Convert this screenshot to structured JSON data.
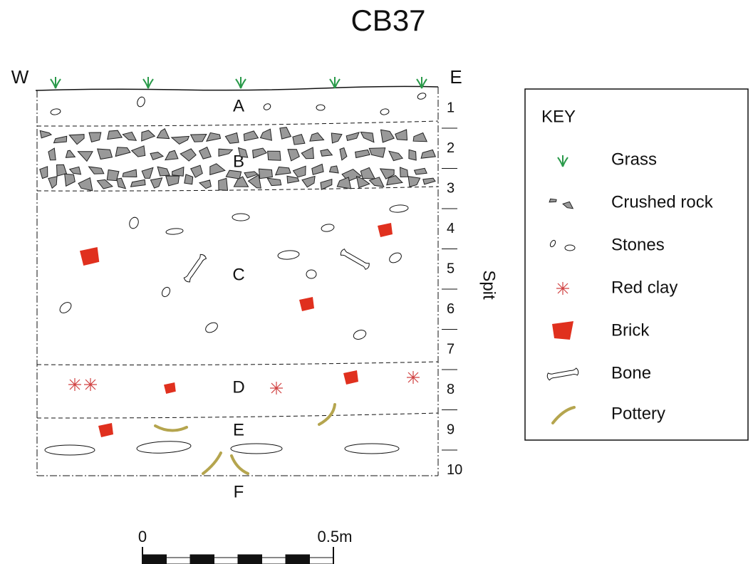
{
  "title": "CB37",
  "section": {
    "west": "W",
    "east": "E",
    "layers": [
      "A",
      "B",
      "C",
      "D",
      "E",
      "F"
    ],
    "spits": [
      "1",
      "2",
      "3",
      "4",
      "5",
      "6",
      "7",
      "8",
      "9",
      "10"
    ],
    "axis_label": "Spit"
  },
  "key": {
    "title": "KEY",
    "items": [
      "Grass",
      "Crushed rock",
      "Stones",
      "Red clay",
      "Brick",
      "Bone",
      "Pottery"
    ]
  },
  "scale": {
    "start": "0",
    "end": "0.5m"
  }
}
